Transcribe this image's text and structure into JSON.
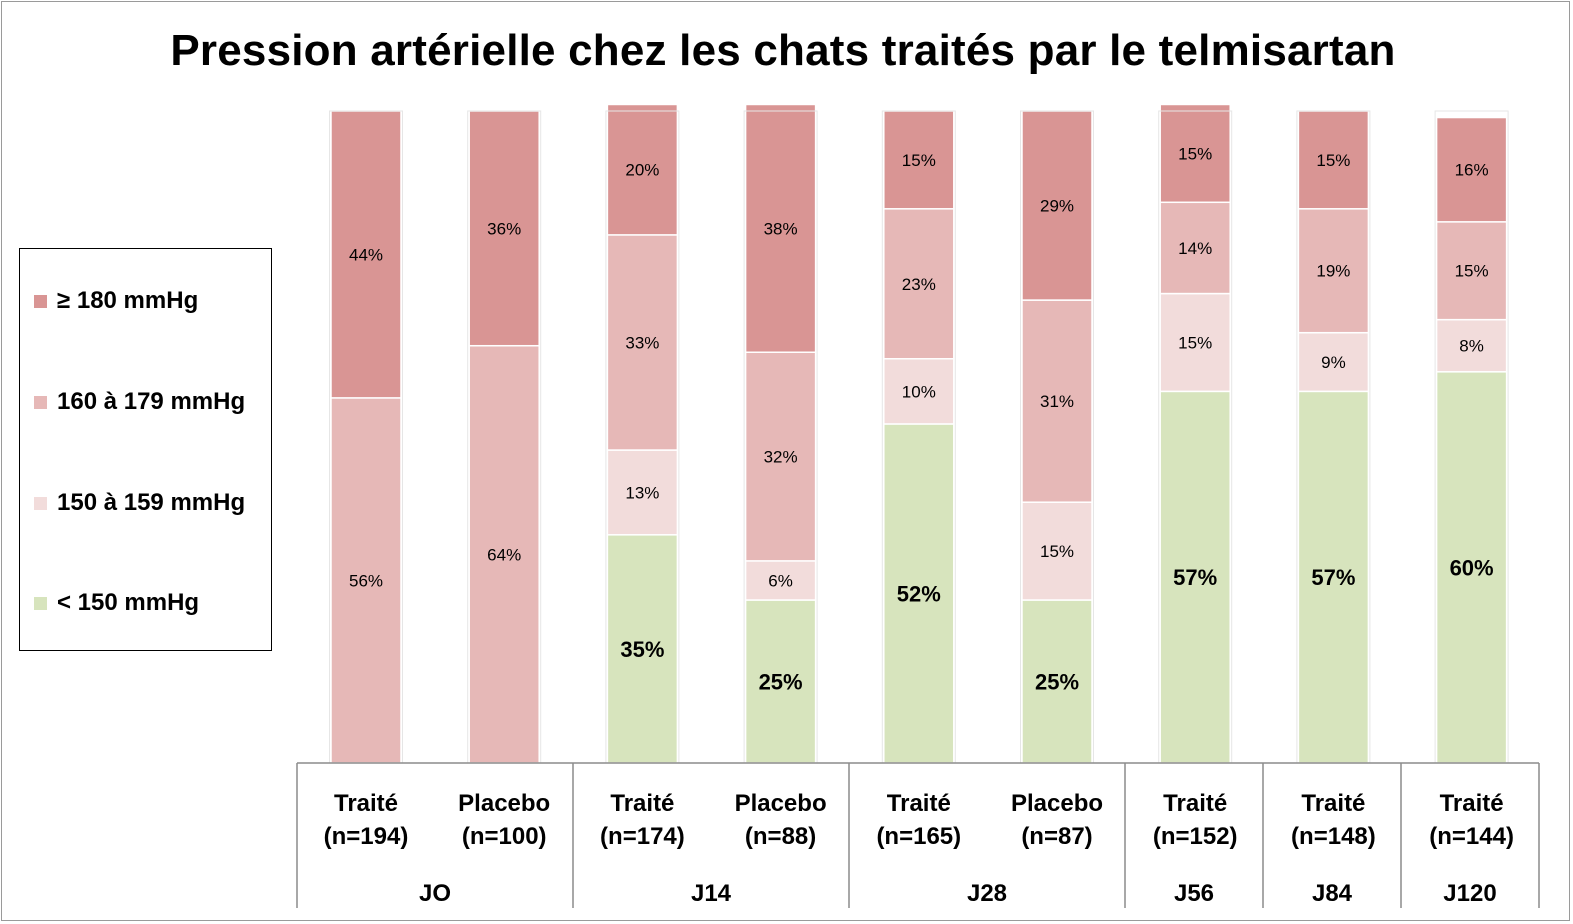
{
  "chart_data": {
    "type": "bar",
    "stacked": true,
    "normalized_percent": true,
    "title": "Pression artérielle chez les chats traités par le telmisartan",
    "legend_position": "left",
    "series_order_bottom_to_top": [
      "< 150 mmHg",
      "150 à 159 mmHg",
      "160 à 179 mmHg",
      "≥ 180 mmHg"
    ],
    "series": [
      {
        "name": "≥ 180 mmHg",
        "color": "#d99594",
        "values": [
          44,
          36,
          20,
          38,
          15,
          29,
          15,
          15,
          16
        ]
      },
      {
        "name": "160 à 179 mmHg",
        "color": "#e6b8b7",
        "values": [
          56,
          64,
          33,
          32,
          23,
          31,
          14,
          19,
          15
        ]
      },
      {
        "name": "150 à 159 mmHg",
        "color": "#f2dcdb",
        "values": [
          0,
          0,
          13,
          6,
          10,
          15,
          15,
          9,
          8
        ]
      },
      {
        "name": "< 150 mmHg",
        "color": "#d7e4bd",
        "values": [
          0,
          0,
          35,
          25,
          52,
          25,
          57,
          57,
          60
        ]
      }
    ],
    "categories": [
      {
        "line1": "Traité",
        "line2": "(n=194)"
      },
      {
        "line1": "Placebo",
        "line2": "(n=100)"
      },
      {
        "line1": "Traité",
        "line2": "(n=174)"
      },
      {
        "line1": "Placebo",
        "line2": "(n=88)"
      },
      {
        "line1": "Traité",
        "line2": "(n=165)"
      },
      {
        "line1": "Placebo",
        "line2": "(n=87)"
      },
      {
        "line1": "Traité",
        "line2": "(n=152)"
      },
      {
        "line1": "Traité",
        "line2": "(n=148)"
      },
      {
        "line1": "Traité",
        "line2": "(n=144)"
      }
    ],
    "groups": [
      {
        "label": "JO",
        "bars": 2
      },
      {
        "label": "J14",
        "bars": 2
      },
      {
        "label": "J28",
        "bars": 2
      },
      {
        "label": "J56",
        "bars": 1
      },
      {
        "label": "J84",
        "bars": 1
      },
      {
        "label": "J120",
        "bars": 1
      }
    ],
    "ylim": [
      0,
      100
    ],
    "grid": false
  }
}
